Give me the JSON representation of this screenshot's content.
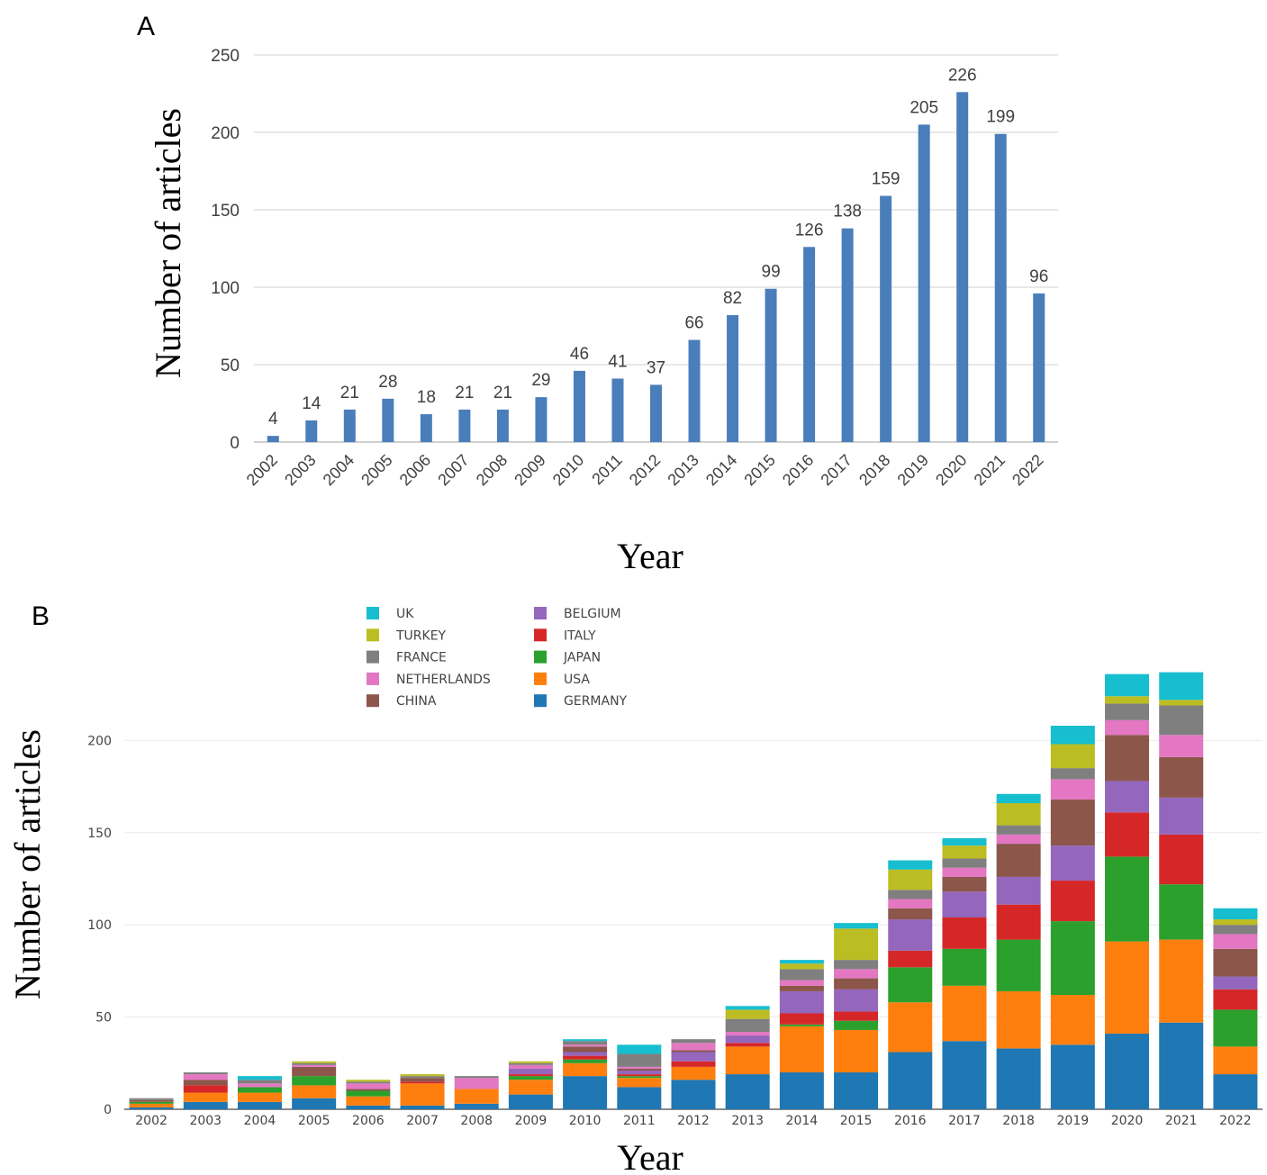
{
  "panels": {
    "a_label": "A",
    "b_label": "B"
  },
  "chart_data": [
    {
      "type": "bar",
      "panel": "A",
      "xlabel": "Year",
      "ylabel": "Number of articles",
      "ylim": [
        0,
        250
      ],
      "yticks": [
        0,
        50,
        100,
        150,
        200,
        250
      ],
      "grid": "horizontal",
      "bar_color": "#4a7ebb",
      "categories": [
        "2002",
        "2003",
        "2004",
        "2005",
        "2006",
        "2007",
        "2008",
        "2009",
        "2010",
        "2011",
        "2012",
        "2013",
        "2014",
        "2015",
        "2016",
        "2017",
        "2018",
        "2019",
        "2020",
        "2021",
        "2022"
      ],
      "values": [
        4,
        14,
        21,
        28,
        18,
        21,
        21,
        29,
        46,
        41,
        37,
        66,
        82,
        99,
        126,
        138,
        159,
        205,
        226,
        199,
        96
      ],
      "data_labels": [
        "4",
        "14",
        "21",
        "28",
        "18",
        "21",
        "21",
        "29",
        "46",
        "41",
        "37",
        "66",
        "82",
        "99",
        "126",
        "138",
        "159",
        "205",
        "226",
        "199",
        "96"
      ]
    },
    {
      "type": "bar",
      "stacked": true,
      "panel": "B",
      "xlabel": "Year",
      "ylabel": "Number of articles",
      "ylim": [
        0,
        240
      ],
      "yticks": [
        0,
        50,
        100,
        150,
        200
      ],
      "grid": "horizontal",
      "legend_position": "top",
      "categories": [
        "2002",
        "2003",
        "2004",
        "2005",
        "2006",
        "2007",
        "2008",
        "2009",
        "2010",
        "2011",
        "2012",
        "2013",
        "2014",
        "2015",
        "2016",
        "2017",
        "2018",
        "2019",
        "2020",
        "2021",
        "2022"
      ],
      "legend_order": [
        "UK",
        "TURKEY",
        "FRANCE",
        "NETHERLANDS",
        "CHINA",
        "BELGIUM",
        "ITALY",
        "JAPAN",
        "USA",
        "GERMANY"
      ],
      "series": [
        {
          "name": "GERMANY",
          "color": "#1f77b4",
          "values": [
            1,
            4,
            4,
            6,
            2,
            2,
            3,
            8,
            18,
            12,
            16,
            19,
            20,
            20,
            31,
            37,
            33,
            35,
            41,
            47,
            19
          ]
        },
        {
          "name": "USA",
          "color": "#ff7f0e",
          "values": [
            2,
            5,
            5,
            7,
            5,
            12,
            8,
            8,
            7,
            5,
            7,
            15,
            25,
            23,
            27,
            30,
            31,
            27,
            50,
            45,
            15
          ]
        },
        {
          "name": "JAPAN",
          "color": "#2ca02c",
          "values": [
            1,
            0,
            3,
            5,
            3,
            0,
            0,
            2,
            2,
            1,
            0,
            0,
            1,
            5,
            19,
            20,
            28,
            40,
            46,
            30,
            20
          ]
        },
        {
          "name": "ITALY",
          "color": "#d62728",
          "values": [
            0,
            4,
            0,
            0,
            0,
            1,
            0,
            1,
            2,
            1,
            3,
            2,
            6,
            5,
            9,
            17,
            19,
            22,
            24,
            27,
            11
          ]
        },
        {
          "name": "BELGIUM",
          "color": "#9467bd",
          "values": [
            0,
            0,
            0,
            0,
            0,
            0,
            0,
            3,
            2,
            2,
            5,
            4,
            12,
            12,
            17,
            14,
            15,
            19,
            17,
            20,
            7
          ]
        },
        {
          "name": "CHINA",
          "color": "#8c564b",
          "values": [
            1,
            3,
            0,
            5,
            1,
            2,
            0,
            0,
            3,
            1,
            1,
            0,
            3,
            6,
            6,
            8,
            18,
            25,
            25,
            22,
            15
          ]
        },
        {
          "name": "NETHERLANDS",
          "color": "#e377c2",
          "values": [
            0,
            3,
            2,
            1,
            3,
            0,
            6,
            2,
            1,
            1,
            4,
            2,
            3,
            5,
            5,
            5,
            5,
            11,
            8,
            12,
            8
          ]
        },
        {
          "name": "FRANCE",
          "color": "#7f7f7f",
          "values": [
            1,
            1,
            2,
            1,
            1,
            1,
            1,
            1,
            2,
            7,
            2,
            7,
            6,
            5,
            5,
            5,
            5,
            6,
            9,
            16,
            5
          ]
        },
        {
          "name": "TURKEY",
          "color": "#bcbd22",
          "values": [
            0,
            0,
            0,
            1,
            1,
            1,
            0,
            1,
            0,
            0,
            0,
            5,
            3,
            17,
            11,
            7,
            12,
            13,
            4,
            3,
            3
          ]
        },
        {
          "name": "UK",
          "color": "#17becf",
          "values": [
            0,
            0,
            2,
            0,
            0,
            0,
            0,
            0,
            1,
            5,
            0,
            2,
            2,
            3,
            5,
            4,
            5,
            10,
            12,
            15,
            6
          ]
        }
      ]
    }
  ]
}
